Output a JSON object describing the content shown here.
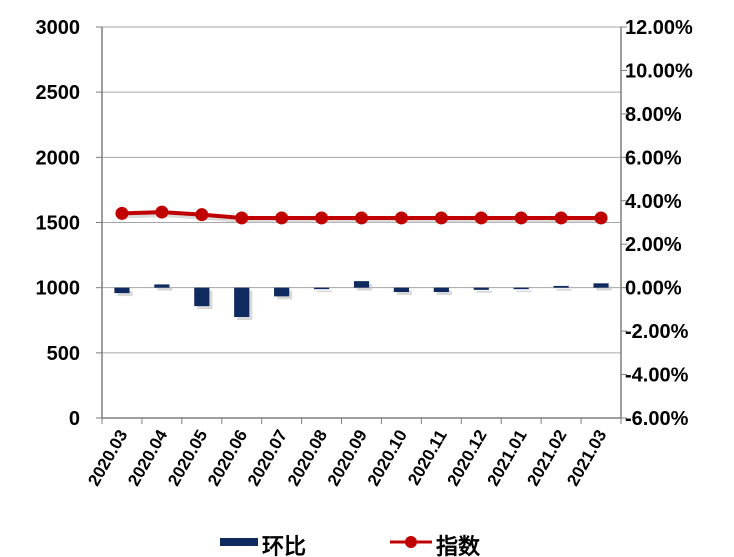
{
  "chart_data": {
    "type": "bar+line",
    "categories": [
      "2020.03",
      "2020.04",
      "2020.05",
      "2020.06",
      "2020.07",
      "2020.08",
      "2020.09",
      "2020.10",
      "2020.11",
      "2020.12",
      "2021.01",
      "2021.02",
      "2021.03"
    ],
    "series": [
      {
        "name": "环比",
        "type": "bar",
        "axis": "right",
        "color": "#0f2a5e",
        "values": [
          -0.25,
          0.15,
          -0.85,
          -1.35,
          -0.4,
          -0.05,
          0.3,
          -0.2,
          -0.2,
          -0.1,
          0.0,
          0.08,
          0.2
        ]
      },
      {
        "name": "指数",
        "type": "line",
        "axis": "left",
        "color": "#c00000",
        "values": [
          1570,
          1580,
          1560,
          1535,
          1535,
          1535,
          1535,
          1535,
          1535,
          1535,
          1535,
          1535,
          1535
        ]
      }
    ],
    "left_axis": {
      "range": [
        0,
        3000
      ],
      "ticks": [
        "0",
        "500",
        "1000",
        "1500",
        "2000",
        "2500",
        "3000"
      ]
    },
    "right_axis": {
      "range": [
        -6,
        12
      ],
      "ticks": [
        "-6.00%",
        "-4.00%",
        "-2.00%",
        "0.00%",
        "2.00%",
        "4.00%",
        "6.00%",
        "8.00%",
        "10.00%",
        "12.00%"
      ]
    },
    "grid": true,
    "legend": "bottom"
  }
}
